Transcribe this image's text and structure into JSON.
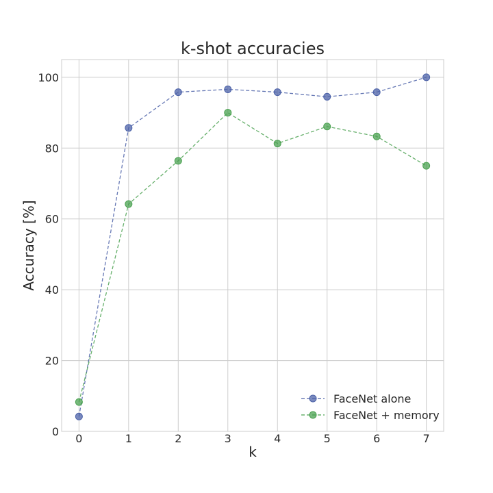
{
  "chart_data": {
    "type": "line",
    "title": "k-shot accuracies",
    "xlabel": "k",
    "ylabel": "Accuracy [%]",
    "x": [
      0,
      1,
      2,
      3,
      4,
      5,
      6,
      7
    ],
    "xlim": [
      -0.35,
      7.35
    ],
    "ylim": [
      0,
      105
    ],
    "xticks": [
      "0",
      "1",
      "2",
      "3",
      "4",
      "5",
      "6",
      "7"
    ],
    "yticks": [
      "0",
      "20",
      "40",
      "60",
      "80",
      "100"
    ],
    "grid": true,
    "legend_position": "lower-right",
    "series": [
      {
        "name": "FaceNet alone",
        "color": "#4c62a8",
        "values": [
          4.2,
          85.7,
          95.8,
          96.6,
          95.8,
          94.5,
          95.8,
          100.0
        ]
      },
      {
        "name": "FaceNet + memory",
        "color": "#4aa150",
        "values": [
          8.3,
          64.2,
          76.4,
          90.0,
          81.3,
          86.1,
          83.3,
          75.0
        ]
      }
    ]
  }
}
